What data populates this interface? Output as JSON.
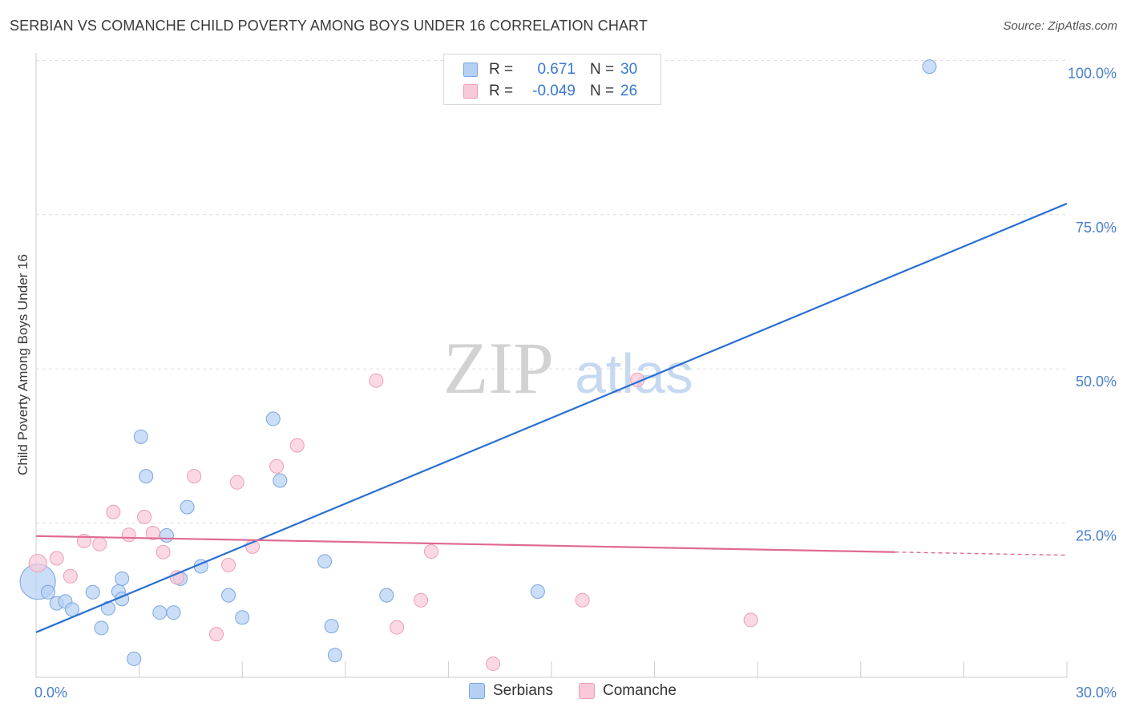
{
  "title": "SERBIAN VS COMANCHE CHILD POVERTY AMONG BOYS UNDER 16 CORRELATION CHART",
  "source": "Source: ZipAtlas.com",
  "watermark": {
    "zip": "ZIP",
    "atlas": "atlas"
  },
  "colors": {
    "serbians_fill": "#b5d0f3",
    "serbians_stroke": "#7aa6e0",
    "serbians_line": "#2a6fd1",
    "comanche_fill": "#f8c9d8",
    "comanche_stroke": "#ee9db6",
    "comanche_line": "#e06a93",
    "grid": "#dddddd",
    "axis_text": "#4a7fcc"
  },
  "legend": {
    "serbians": {
      "r_label": "R =",
      "r_value": "0.671",
      "n_label": "N =",
      "n_value": "30"
    },
    "comanche": {
      "r_label": "R =",
      "r_value": "-0.049",
      "n_label": "N =",
      "n_value": "26"
    }
  },
  "chart_data": {
    "type": "scatter",
    "title": "SERBIAN VS COMANCHE CHILD POVERTY AMONG BOYS UNDER 16 CORRELATION CHART",
    "xlabel": "",
    "ylabel": "Child Poverty Among Boys Under 16",
    "xlim": [
      0,
      30
    ],
    "ylim": [
      0,
      102
    ],
    "x_tick_labels": [
      "0.0%",
      "30.0%"
    ],
    "y_ticks": [
      25,
      50,
      75,
      100
    ],
    "y_tick_labels": [
      "25.0%",
      "50.0%",
      "75.0%",
      "100.0%"
    ],
    "legend_placement": "bottom-center",
    "series": [
      {
        "name": "Serbians",
        "points": [
          {
            "x": 0.05,
            "y": 15.5,
            "s": 22
          },
          {
            "x": 0.35,
            "y": 13.8
          },
          {
            "x": 0.6,
            "y": 12.0
          },
          {
            "x": 0.85,
            "y": 12.3
          },
          {
            "x": 1.05,
            "y": 11.0
          },
          {
            "x": 1.65,
            "y": 13.8
          },
          {
            "x": 1.9,
            "y": 8.0
          },
          {
            "x": 2.1,
            "y": 11.2
          },
          {
            "x": 2.4,
            "y": 13.9
          },
          {
            "x": 2.5,
            "y": 16.0
          },
          {
            "x": 2.5,
            "y": 12.7
          },
          {
            "x": 2.85,
            "y": 3.0
          },
          {
            "x": 3.05,
            "y": 39.0
          },
          {
            "x": 3.2,
            "y": 32.6
          },
          {
            "x": 3.6,
            "y": 10.5
          },
          {
            "x": 3.8,
            "y": 23.0
          },
          {
            "x": 4.0,
            "y": 10.5
          },
          {
            "x": 4.2,
            "y": 16.0
          },
          {
            "x": 4.4,
            "y": 27.6
          },
          {
            "x": 4.8,
            "y": 18.0
          },
          {
            "x": 5.6,
            "y": 13.3
          },
          {
            "x": 6.0,
            "y": 9.7
          },
          {
            "x": 6.9,
            "y": 41.9
          },
          {
            "x": 7.1,
            "y": 31.9
          },
          {
            "x": 8.4,
            "y": 18.8
          },
          {
            "x": 8.6,
            "y": 8.3
          },
          {
            "x": 8.7,
            "y": 3.6
          },
          {
            "x": 10.2,
            "y": 13.3
          },
          {
            "x": 14.6,
            "y": 13.9
          },
          {
            "x": 26.0,
            "y": 99.0
          }
        ],
        "trend": {
          "x": [
            0,
            30
          ],
          "y": [
            7.3,
            76.8
          ]
        }
      },
      {
        "name": "Comanche",
        "points": [
          {
            "x": 0.05,
            "y": 18.5,
            "s": 11
          },
          {
            "x": 0.6,
            "y": 19.3
          },
          {
            "x": 1.0,
            "y": 16.4
          },
          {
            "x": 1.4,
            "y": 22.1
          },
          {
            "x": 1.85,
            "y": 21.6
          },
          {
            "x": 2.25,
            "y": 26.8
          },
          {
            "x": 2.7,
            "y": 23.1
          },
          {
            "x": 3.15,
            "y": 26.0
          },
          {
            "x": 3.4,
            "y": 23.4
          },
          {
            "x": 3.7,
            "y": 20.3
          },
          {
            "x": 4.1,
            "y": 16.2
          },
          {
            "x": 4.6,
            "y": 32.6
          },
          {
            "x": 5.25,
            "y": 7.0
          },
          {
            "x": 5.6,
            "y": 18.2
          },
          {
            "x": 5.85,
            "y": 31.6
          },
          {
            "x": 6.3,
            "y": 21.2
          },
          {
            "x": 7.0,
            "y": 34.2
          },
          {
            "x": 7.6,
            "y": 37.6
          },
          {
            "x": 9.9,
            "y": 48.1
          },
          {
            "x": 10.5,
            "y": 8.1
          },
          {
            "x": 11.2,
            "y": 12.5
          },
          {
            "x": 11.5,
            "y": 20.4
          },
          {
            "x": 13.3,
            "y": 2.2
          },
          {
            "x": 15.9,
            "y": 12.5
          },
          {
            "x": 17.5,
            "y": 48.2
          },
          {
            "x": 20.8,
            "y": 9.3
          }
        ],
        "trend": {
          "x": [
            0,
            25
          ],
          "y": [
            22.9,
            20.3
          ]
        },
        "trend_dashed": {
          "x": [
            25,
            30
          ],
          "y": [
            20.3,
            19.8
          ]
        }
      }
    ]
  },
  "bottom_legend": [
    {
      "label": "Serbians"
    },
    {
      "label": "Comanche"
    }
  ]
}
